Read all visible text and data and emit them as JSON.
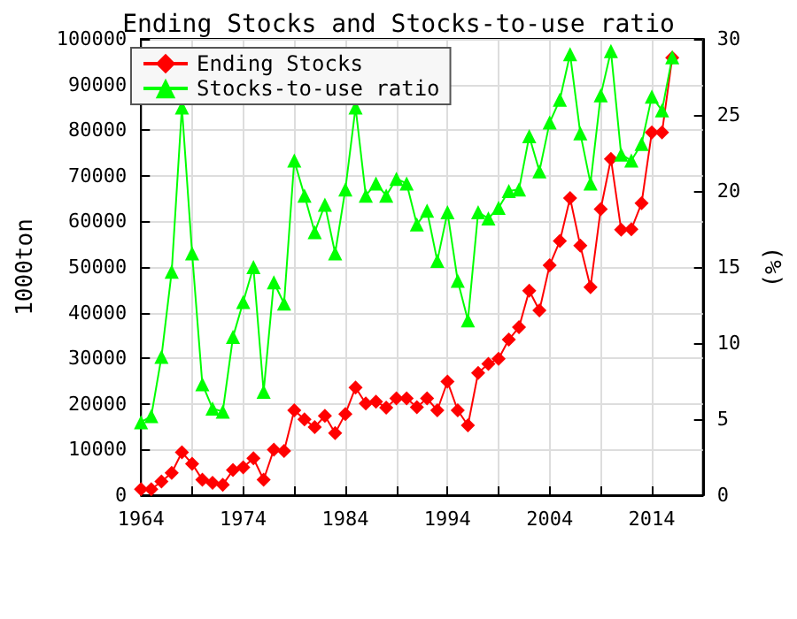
{
  "chart_data": {
    "type": "line",
    "title": "Ending Stocks and Stocks-to-use ratio",
    "ylabel": "1000ton",
    "y2label": "(%)",
    "x": [
      1964,
      1965,
      1966,
      1967,
      1968,
      1969,
      1970,
      1971,
      1972,
      1973,
      1974,
      1975,
      1976,
      1977,
      1978,
      1979,
      1980,
      1981,
      1982,
      1983,
      1984,
      1985,
      1986,
      1987,
      1988,
      1989,
      1990,
      1991,
      1992,
      1993,
      1994,
      1995,
      1996,
      1997,
      1998,
      1999,
      2000,
      2001,
      2002,
      2003,
      2004,
      2005,
      2006,
      2007,
      2008,
      2009,
      2010,
      2011,
      2012,
      2013,
      2014,
      2015,
      2016
    ],
    "series": [
      {
        "name": "Ending Stocks",
        "color": "#ff0000",
        "marker": "diamond",
        "values": [
          1300,
          1300,
          3000,
          4900,
          9400,
          6900,
          3400,
          2700,
          2300,
          5500,
          6100,
          8100,
          3400,
          10000,
          9700,
          18600,
          16600,
          14900,
          17400,
          13600,
          17800,
          23600,
          20100,
          20500,
          19200,
          21200,
          21200,
          19300,
          21200,
          18600,
          24900,
          18600,
          15300,
          26800,
          28800,
          29900,
          34100,
          36800,
          44800,
          40500,
          50400,
          55700,
          65100,
          54700,
          45600,
          62700,
          73700,
          58200,
          58300,
          64000,
          79500,
          79500,
          95900
        ]
      },
      {
        "name": "Stocks-to-use ratio",
        "color": "#00ff00",
        "marker": "triangle",
        "axis": "y2",
        "values": [
          4.8,
          5.2,
          9.1,
          14.7,
          25.5,
          15.9,
          7.3,
          5.7,
          5.5,
          10.4,
          12.7,
          15.0,
          6.8,
          14.0,
          12.6,
          22.0,
          19.7,
          17.3,
          19.1,
          15.9,
          20.1,
          25.5,
          19.7,
          20.5,
          19.7,
          20.8,
          20.5,
          17.8,
          18.7,
          15.4,
          18.6,
          14.1,
          11.5,
          18.6,
          18.2,
          18.9,
          20.0,
          20.1,
          23.6,
          21.3,
          24.5,
          26.0,
          29.0,
          23.8,
          20.5,
          26.3,
          29.2,
          22.4,
          22.0,
          23.1,
          26.2,
          25.3,
          28.8
        ]
      }
    ],
    "xlim": [
      1964,
      2019
    ],
    "xticks": [
      1964,
      {
        "value": 1969,
        "label": null
      },
      1974,
      {
        "value": 1979,
        "label": null
      },
      1984,
      {
        "value": 1989,
        "label": null
      },
      1994,
      {
        "value": 1999,
        "label": null
      },
      2004,
      {
        "value": 2009,
        "label": null
      },
      2014,
      {
        "value": 2019,
        "label": null
      }
    ],
    "ylim": [
      0,
      100000
    ],
    "yticks": [
      0,
      10000,
      20000,
      30000,
      40000,
      50000,
      60000,
      70000,
      80000,
      90000,
      100000
    ],
    "y2lim": [
      0,
      30
    ],
    "y2ticks": [
      0,
      5,
      10,
      15,
      20,
      25,
      30
    ],
    "grid": true,
    "legend": "top left",
    "line_style": "solid"
  }
}
